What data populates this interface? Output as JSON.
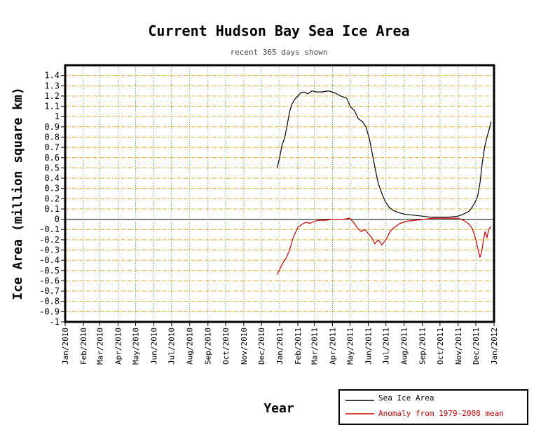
{
  "chart_data": {
    "type": "line",
    "title": "Current Hudson Bay Sea Ice Area",
    "subtitle": "recent 365 days shown",
    "xlabel": "Year",
    "ylabel": "Ice Area (million square km)",
    "ylim": [
      -1,
      1.5
    ],
    "y_ticks": [
      -1,
      -0.9,
      -0.8,
      -0.7,
      -0.6,
      -0.5,
      -0.4,
      -0.3,
      -0.2,
      -0.1,
      0,
      0.1,
      0.2,
      0.3,
      0.4,
      0.5,
      0.6,
      0.7,
      0.8,
      0.9,
      1,
      1.1,
      1.2,
      1.3,
      1.4
    ],
    "y_tick_labels": [
      "-1",
      "-0.9",
      "-0.8",
      "-0.7",
      "-0.6",
      "-0.5",
      "-0.4",
      "-0.3",
      "-0.2",
      "-0.1",
      "0",
      "0.1",
      "0.2",
      "0.3",
      "0.4",
      "0.5",
      "0.6",
      "0.7",
      "0.8",
      "0.9",
      "1",
      "1.1",
      "1.2",
      "1.3",
      "1.4"
    ],
    "x_ticks": [
      "Jan/2010",
      "Feb/2010",
      "Mar/2010",
      "Apr/2010",
      "May/2010",
      "Jun/2010",
      "Jul/2010",
      "Aug/2010",
      "Sep/2010",
      "Oct/2010",
      "Nov/2010",
      "Dec/2010",
      "Jan/2011",
      "Feb/2011",
      "Mar/2011",
      "Apr/2011",
      "May/2011",
      "Jun/2011",
      "Jul/2011",
      "Aug/2011",
      "Sep/2011",
      "Oct/2011",
      "Nov/2011",
      "Dec/2011",
      "Jan/2012"
    ],
    "xlim": [
      "2010-01-01",
      "2012-01-01"
    ],
    "grid": true,
    "legend_position": "bottom-right",
    "series": [
      {
        "name": "Sea Ice Area",
        "color": "#000000",
        "x": [
          "2010-12-28",
          "2011-01-01",
          "2011-01-05",
          "2011-01-10",
          "2011-01-14",
          "2011-01-18",
          "2011-01-22",
          "2011-01-27",
          "2011-02-01",
          "2011-02-06",
          "2011-02-12",
          "2011-02-18",
          "2011-02-25",
          "2011-03-05",
          "2011-03-15",
          "2011-03-25",
          "2011-04-05",
          "2011-04-15",
          "2011-04-25",
          "2011-05-01",
          "2011-05-08",
          "2011-05-15",
          "2011-05-22",
          "2011-05-28",
          "2011-06-03",
          "2011-06-08",
          "2011-06-13",
          "2011-06-18",
          "2011-06-24",
          "2011-06-30",
          "2011-07-06",
          "2011-07-12",
          "2011-07-20",
          "2011-08-01",
          "2011-08-15",
          "2011-09-01",
          "2011-09-15",
          "2011-10-01",
          "2011-10-15",
          "2011-11-01",
          "2011-11-10",
          "2011-11-20",
          "2011-11-25",
          "2011-11-30",
          "2011-12-04",
          "2011-12-08",
          "2011-12-12",
          "2011-12-16",
          "2011-12-20",
          "2011-12-24",
          "2011-12-27"
        ],
        "values": [
          0.5,
          0.6,
          0.72,
          0.8,
          0.92,
          1.05,
          1.12,
          1.17,
          1.2,
          1.23,
          1.24,
          1.22,
          1.25,
          1.24,
          1.24,
          1.25,
          1.23,
          1.2,
          1.18,
          1.1,
          1.06,
          0.98,
          0.95,
          0.9,
          0.78,
          0.63,
          0.48,
          0.35,
          0.25,
          0.17,
          0.12,
          0.09,
          0.07,
          0.05,
          0.04,
          0.03,
          0.02,
          0.02,
          0.02,
          0.03,
          0.05,
          0.08,
          0.12,
          0.17,
          0.22,
          0.35,
          0.55,
          0.7,
          0.8,
          0.88,
          0.95
        ]
      },
      {
        "name": "Anomaly from 1979-2008 mean",
        "color": "#cc0000",
        "x": [
          "2010-12-28",
          "2011-01-02",
          "2011-01-07",
          "2011-01-12",
          "2011-01-18",
          "2011-01-24",
          "2011-02-01",
          "2011-02-08",
          "2011-02-15",
          "2011-02-22",
          "2011-03-01",
          "2011-03-10",
          "2011-03-20",
          "2011-03-30",
          "2011-04-10",
          "2011-04-20",
          "2011-04-30",
          "2011-05-07",
          "2011-05-14",
          "2011-05-20",
          "2011-05-26",
          "2011-06-01",
          "2011-06-07",
          "2011-06-12",
          "2011-06-18",
          "2011-06-24",
          "2011-07-01",
          "2011-07-08",
          "2011-07-15",
          "2011-07-25",
          "2011-08-05",
          "2011-08-20",
          "2011-09-05",
          "2011-09-20",
          "2011-10-05",
          "2011-10-20",
          "2011-11-01",
          "2011-11-10",
          "2011-11-18",
          "2011-11-24",
          "2011-11-28",
          "2011-12-02",
          "2011-12-05",
          "2011-12-08",
          "2011-12-11",
          "2011-12-14",
          "2011-12-17",
          "2011-12-20",
          "2011-12-23",
          "2011-12-27"
        ],
        "values": [
          -0.54,
          -0.48,
          -0.42,
          -0.38,
          -0.3,
          -0.18,
          -0.08,
          -0.05,
          -0.03,
          -0.04,
          -0.02,
          -0.01,
          -0.01,
          0,
          0,
          0,
          0.01,
          -0.03,
          -0.09,
          -0.12,
          -0.1,
          -0.14,
          -0.18,
          -0.24,
          -0.2,
          -0.25,
          -0.2,
          -0.12,
          -0.08,
          -0.04,
          -0.02,
          -0.01,
          0,
          0.01,
          0.01,
          0.01,
          0.01,
          -0.01,
          -0.04,
          -0.08,
          -0.14,
          -0.22,
          -0.3,
          -0.37,
          -0.32,
          -0.2,
          -0.12,
          -0.18,
          -0.1,
          -0.07
        ]
      }
    ]
  }
}
